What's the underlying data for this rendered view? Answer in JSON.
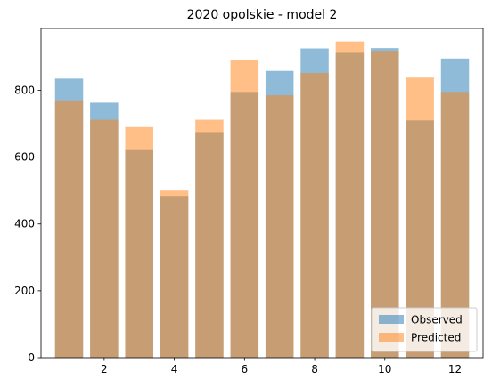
{
  "chart_data": {
    "type": "bar",
    "title": "2020 opolskie - model 2",
    "xlabel": "",
    "ylabel": "",
    "x": [
      1,
      2,
      3,
      4,
      5,
      6,
      7,
      8,
      9,
      10,
      11,
      12
    ],
    "xticks": [
      2,
      4,
      6,
      8,
      10,
      12
    ],
    "xlim": [
      0.2,
      12.8
    ],
    "yticks": [
      0,
      200,
      400,
      600,
      800
    ],
    "ylim": [
      0,
      985
    ],
    "grid": false,
    "legend_position": "lower-right",
    "series": [
      {
        "name": "Observed",
        "color": "#1f77b4",
        "opacity": 0.5,
        "values": [
          835,
          763,
          621,
          484,
          675,
          795,
          858,
          925,
          912,
          926,
          710,
          895
        ]
      },
      {
        "name": "Predicted",
        "color": "#ff7f0e",
        "opacity": 0.5,
        "values": [
          770,
          712,
          690,
          500,
          712,
          890,
          785,
          852,
          946,
          918,
          838,
          795
        ]
      }
    ]
  }
}
